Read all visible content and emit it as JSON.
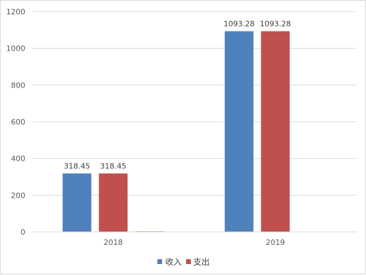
{
  "chart_data": {
    "type": "bar",
    "categories": [
      "2018",
      "2019"
    ],
    "series": [
      {
        "name": "收入",
        "values": [
          318.45,
          1093.28
        ],
        "color": "#4f81bd",
        "data_labels": [
          "318.45",
          "1093.28"
        ]
      },
      {
        "name": "支出",
        "values": [
          318.45,
          1093.28
        ],
        "color": "#c0504d",
        "data_labels": [
          "318.45",
          "1093.28"
        ]
      },
      {
        "values": [
          1,
          0
        ],
        "color": "#9bbb59"
      }
    ],
    "ylim": [
      0,
      1200
    ],
    "yticks": [
      0,
      200,
      400,
      600,
      800,
      1000,
      1200
    ],
    "ytick_labels": [
      "0",
      "200",
      "400",
      "600",
      "800",
      "1000",
      "1200"
    ],
    "grid": true,
    "legend": "bottom",
    "title": "",
    "xlabel": "",
    "ylabel": ""
  }
}
